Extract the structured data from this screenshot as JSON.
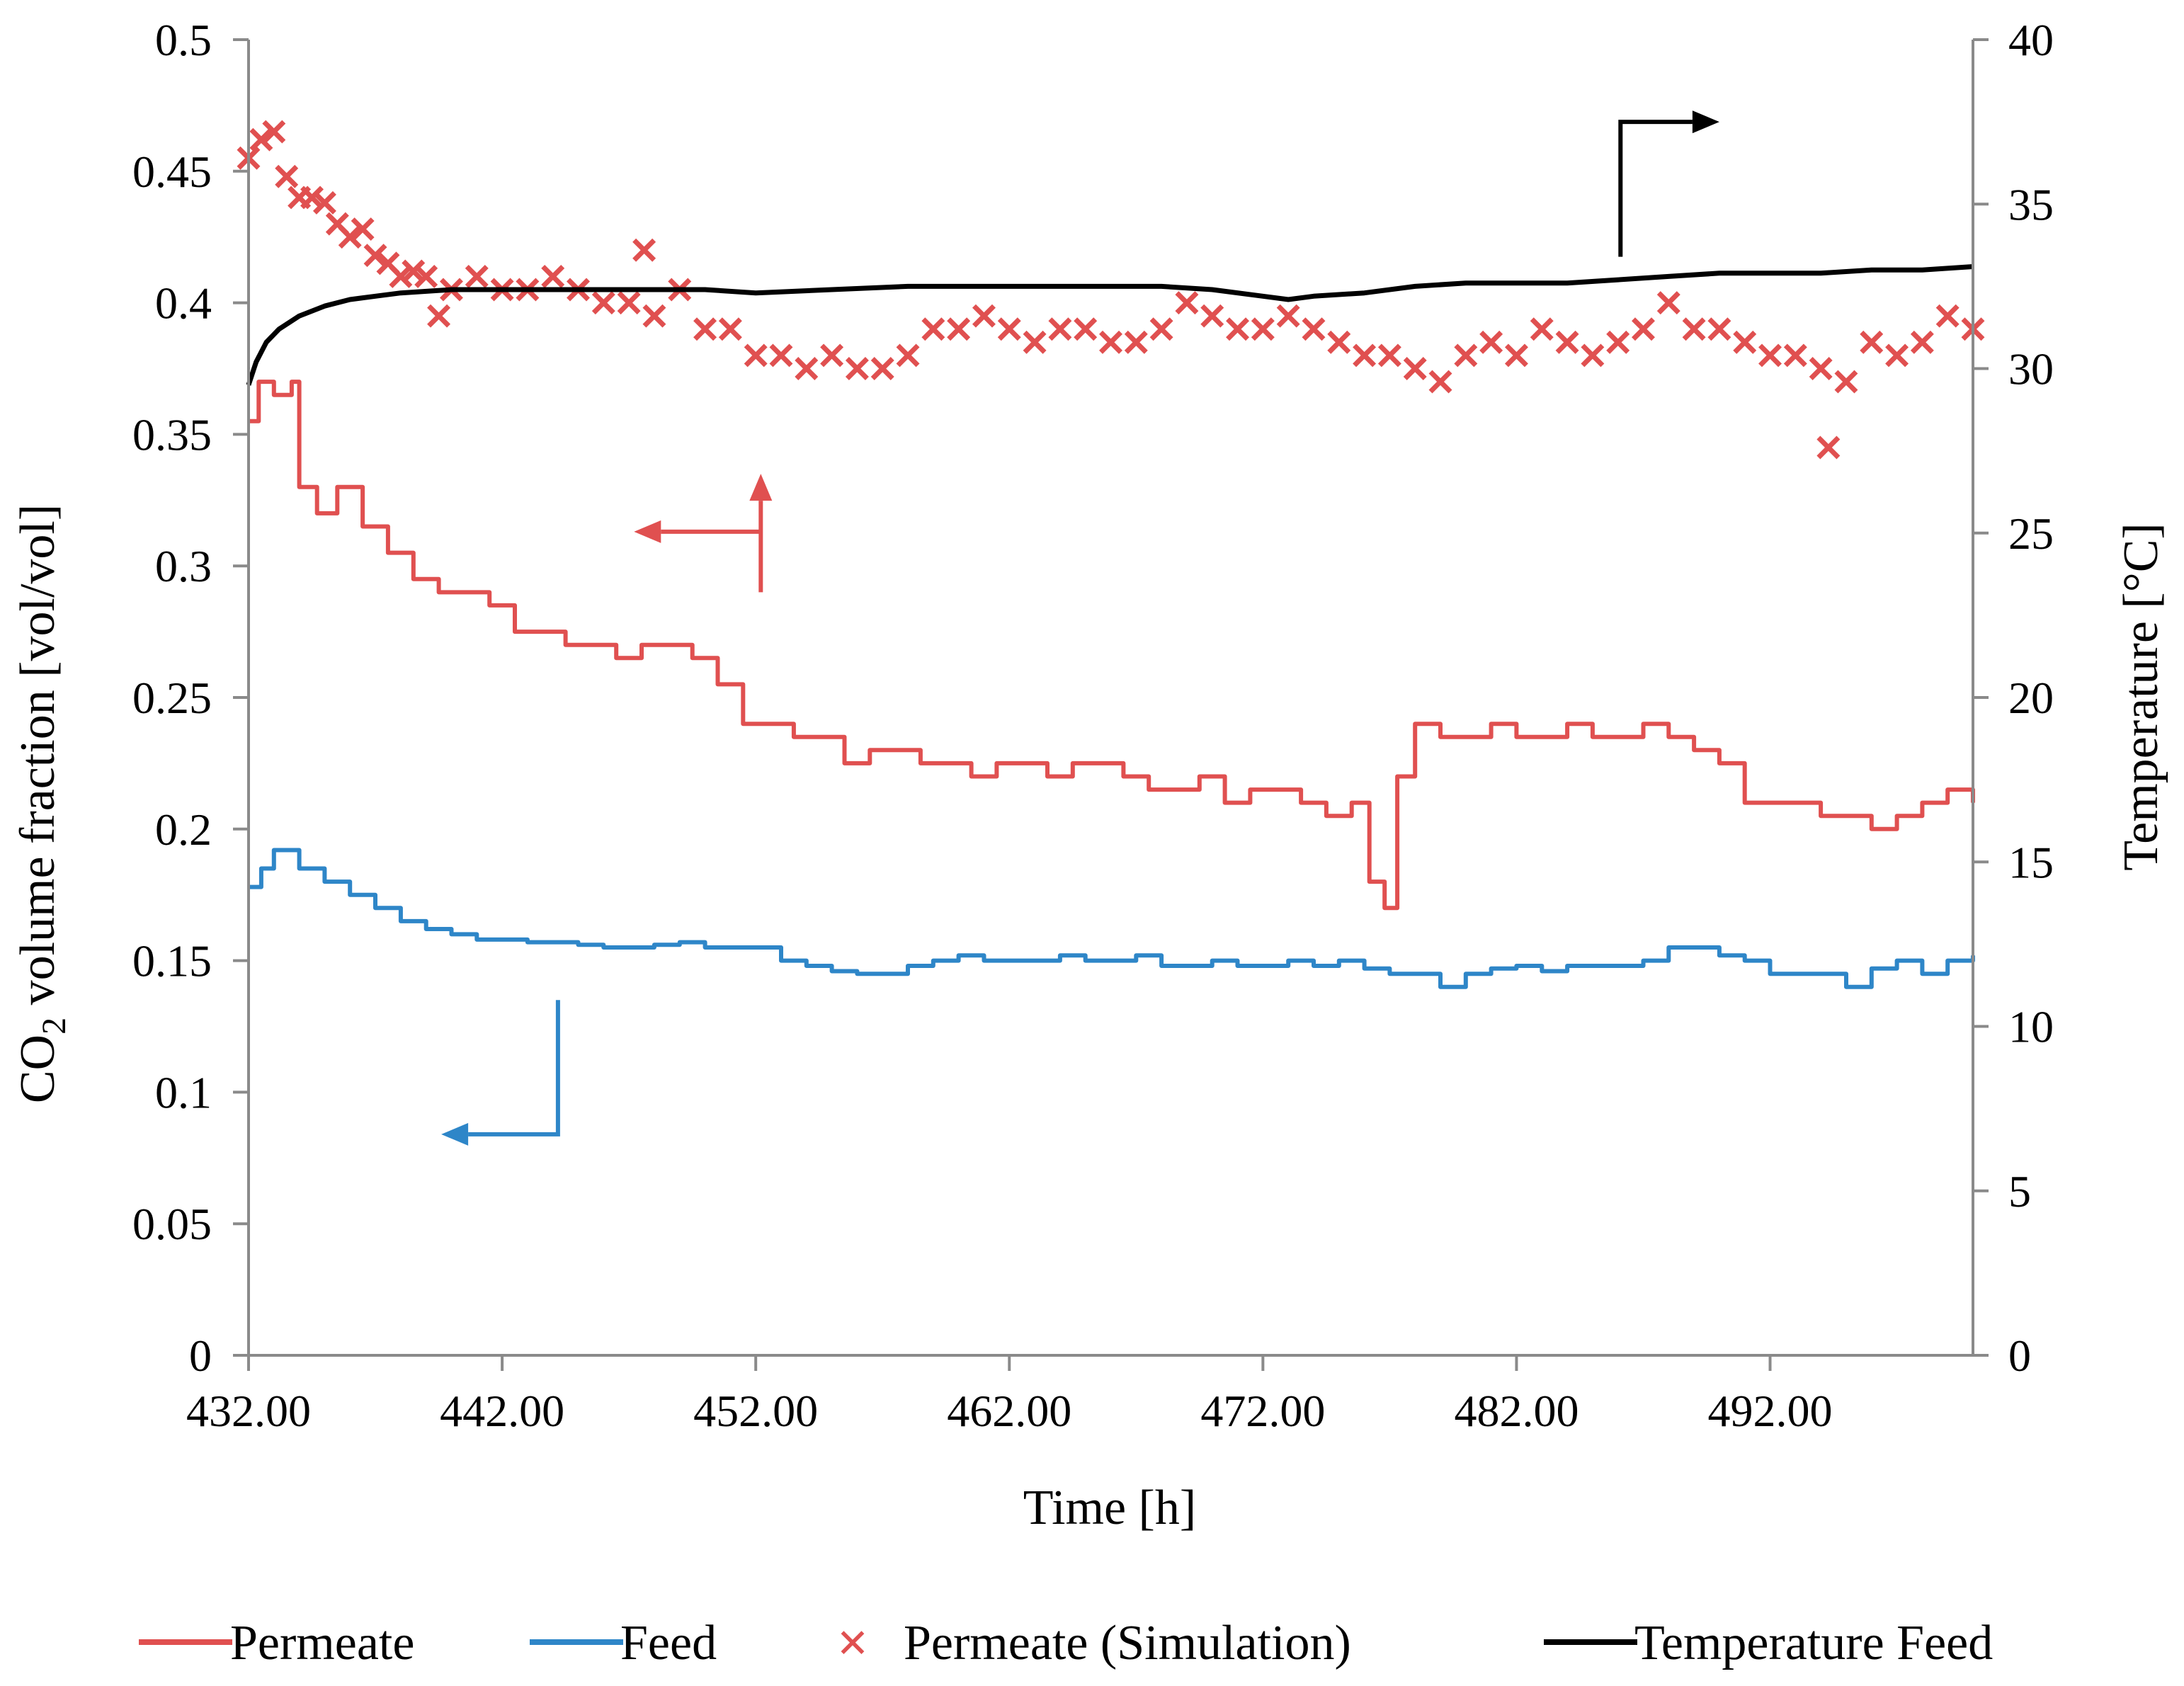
{
  "chart_data": {
    "type": "line",
    "x_axis": {
      "label": "Time [h]",
      "min": 432,
      "max": 500,
      "ticks": [
        {
          "value": 432,
          "label": "432.00"
        },
        {
          "value": 442,
          "label": "442.00"
        },
        {
          "value": 452,
          "label": "452.00"
        },
        {
          "value": 462,
          "label": "462.00"
        },
        {
          "value": 472,
          "label": "472.00"
        },
        {
          "value": 482,
          "label": "482.00"
        },
        {
          "value": 492,
          "label": "492.00"
        }
      ]
    },
    "y_axis_left": {
      "label_main": "CO",
      "label_sub": "2",
      "label_rest": " volume fraction  [vol/vol]",
      "min": 0,
      "max": 0.5,
      "ticks": [
        {
          "value": 0,
          "label": "0"
        },
        {
          "value": 0.05,
          "label": "0.05"
        },
        {
          "value": 0.1,
          "label": "0.1"
        },
        {
          "value": 0.15,
          "label": "0.15"
        },
        {
          "value": 0.2,
          "label": "0.2"
        },
        {
          "value": 0.25,
          "label": "0.25"
        },
        {
          "value": 0.3,
          "label": "0.3"
        },
        {
          "value": 0.35,
          "label": "0.35"
        },
        {
          "value": 0.4,
          "label": "0.4"
        },
        {
          "value": 0.45,
          "label": "0.45"
        },
        {
          "value": 0.5,
          "label": "0.5"
        }
      ]
    },
    "y_axis_right": {
      "label": "Temperature  [°C]",
      "min": 0,
      "max": 40,
      "ticks": [
        {
          "value": 0,
          "label": "0"
        },
        {
          "value": 5,
          "label": "5"
        },
        {
          "value": 10,
          "label": "10"
        },
        {
          "value": 15,
          "label": "15"
        },
        {
          "value": 20,
          "label": "20"
        },
        {
          "value": 25,
          "label": "25"
        },
        {
          "value": 30,
          "label": "30"
        },
        {
          "value": 35,
          "label": "35"
        },
        {
          "value": 40,
          "label": "40"
        }
      ]
    },
    "legend_position": "bottom",
    "grid": false,
    "series": [
      {
        "name": "Permeate",
        "kind": "line",
        "axis": "left",
        "color": "#e05050",
        "x": [
          432,
          432.4,
          433,
          433.7,
          434,
          434.7,
          435.5,
          436.5,
          437.5,
          438.5,
          439.5,
          440.5,
          441.5,
          442.5,
          443.5,
          444.5,
          445.5,
          446.5,
          447.5,
          448.5,
          449.5,
          450.5,
          451.5,
          452.5,
          453.5,
          454.5,
          455.5,
          456.5,
          457.5,
          458.5,
          459.5,
          460.5,
          461.5,
          462.5,
          463.5,
          464.5,
          465.5,
          466.5,
          467.5,
          468.5,
          469.5,
          470.5,
          471.5,
          472.5,
          473.5,
          474.5,
          475.5,
          476.2,
          476.8,
          477.3,
          478.0,
          479.0,
          480.0,
          481.0,
          482.0,
          483.0,
          484.0,
          485.0,
          486.0,
          487.0,
          488.0,
          489.0,
          490.0,
          491.0,
          492.0,
          493.0,
          494.0,
          495.0,
          496.0,
          497.0,
          498.0,
          499.0,
          500.0
        ],
        "values": [
          0.355,
          0.37,
          0.365,
          0.37,
          0.33,
          0.32,
          0.33,
          0.315,
          0.305,
          0.295,
          0.29,
          0.29,
          0.285,
          0.275,
          0.275,
          0.27,
          0.27,
          0.265,
          0.27,
          0.27,
          0.265,
          0.255,
          0.24,
          0.24,
          0.235,
          0.235,
          0.225,
          0.23,
          0.23,
          0.225,
          0.225,
          0.22,
          0.225,
          0.225,
          0.22,
          0.225,
          0.225,
          0.22,
          0.215,
          0.215,
          0.22,
          0.21,
          0.215,
          0.215,
          0.21,
          0.205,
          0.21,
          0.18,
          0.17,
          0.22,
          0.24,
          0.235,
          0.235,
          0.24,
          0.235,
          0.235,
          0.24,
          0.235,
          0.235,
          0.24,
          0.235,
          0.23,
          0.225,
          0.21,
          0.21,
          0.21,
          0.205,
          0.205,
          0.2,
          0.205,
          0.21,
          0.215,
          0.21
        ]
      },
      {
        "name": "Feed",
        "kind": "line",
        "axis": "left",
        "color": "#2e86c8",
        "x": [
          432,
          432.5,
          433,
          434,
          435,
          436,
          437,
          438,
          439,
          440,
          441,
          442,
          443,
          444,
          445,
          446,
          447,
          448,
          449,
          450,
          451,
          452,
          453,
          454,
          455,
          456,
          457,
          458,
          459,
          460,
          461,
          462,
          463,
          464,
          465,
          466,
          467,
          468,
          469,
          470,
          471,
          472,
          473,
          474,
          475,
          476,
          477,
          478,
          479,
          480,
          481,
          482,
          483,
          484,
          485,
          486,
          487,
          488,
          489,
          490,
          491,
          492,
          493,
          494,
          495,
          496,
          497,
          498,
          499,
          500
        ],
        "values": [
          0.178,
          0.185,
          0.192,
          0.185,
          0.18,
          0.175,
          0.17,
          0.165,
          0.162,
          0.16,
          0.158,
          0.158,
          0.157,
          0.157,
          0.156,
          0.155,
          0.155,
          0.156,
          0.157,
          0.155,
          0.155,
          0.155,
          0.15,
          0.148,
          0.146,
          0.145,
          0.145,
          0.148,
          0.15,
          0.152,
          0.15,
          0.15,
          0.15,
          0.152,
          0.15,
          0.15,
          0.152,
          0.148,
          0.148,
          0.15,
          0.148,
          0.148,
          0.15,
          0.148,
          0.15,
          0.147,
          0.145,
          0.145,
          0.14,
          0.145,
          0.147,
          0.148,
          0.146,
          0.148,
          0.148,
          0.148,
          0.15,
          0.155,
          0.155,
          0.152,
          0.15,
          0.145,
          0.145,
          0.145,
          0.14,
          0.147,
          0.15,
          0.145,
          0.15,
          0.152
        ]
      },
      {
        "name": "Permeate (Simulation)",
        "kind": "scatter",
        "axis": "left",
        "color": "#e05050",
        "marker": "x",
        "x": [
          432,
          432.5,
          433,
          433.5,
          434,
          434.5,
          435,
          435.5,
          436,
          436.5,
          437,
          437.5,
          438,
          438.5,
          439,
          439.5,
          440,
          441,
          442,
          443,
          444,
          445,
          446,
          447,
          447.6,
          448,
          449,
          450,
          451,
          452,
          453,
          454,
          455,
          456,
          457,
          458,
          459,
          460,
          461,
          462,
          463,
          464,
          465,
          466,
          467,
          468,
          469,
          470,
          471,
          472,
          473,
          474,
          475,
          476,
          477,
          478,
          479,
          480,
          481,
          482,
          483,
          484,
          485,
          486,
          487,
          488,
          489,
          490,
          491,
          492,
          493,
          494,
          494.3,
          495,
          496,
          497,
          498,
          499,
          500
        ],
        "values": [
          0.455,
          0.462,
          0.465,
          0.448,
          0.44,
          0.44,
          0.438,
          0.43,
          0.425,
          0.428,
          0.418,
          0.415,
          0.41,
          0.412,
          0.41,
          0.395,
          0.405,
          0.41,
          0.405,
          0.405,
          0.41,
          0.405,
          0.4,
          0.4,
          0.42,
          0.395,
          0.405,
          0.39,
          0.39,
          0.38,
          0.38,
          0.375,
          0.38,
          0.375,
          0.375,
          0.38,
          0.39,
          0.39,
          0.395,
          0.39,
          0.385,
          0.39,
          0.39,
          0.385,
          0.385,
          0.39,
          0.4,
          0.395,
          0.39,
          0.39,
          0.395,
          0.39,
          0.385,
          0.38,
          0.38,
          0.375,
          0.37,
          0.38,
          0.385,
          0.38,
          0.39,
          0.385,
          0.38,
          0.385,
          0.39,
          0.4,
          0.39,
          0.39,
          0.385,
          0.38,
          0.38,
          0.375,
          0.345,
          0.37,
          0.385,
          0.38,
          0.385,
          0.395,
          0.39
        ]
      },
      {
        "name": "Temperature Feed",
        "kind": "line",
        "axis": "right",
        "color": "#000000",
        "x": [
          432,
          432.3,
          432.7,
          433.2,
          434,
          435,
          436,
          437,
          438,
          440,
          442,
          444,
          446,
          448,
          450,
          452,
          455,
          458,
          460,
          462,
          465,
          468,
          470,
          472,
          473,
          474,
          476,
          478,
          480,
          482,
          484,
          486,
          488,
          490,
          492,
          494,
          496,
          498,
          500
        ],
        "values": [
          29.5,
          30.2,
          30.8,
          31.2,
          31.6,
          31.9,
          32.1,
          32.2,
          32.3,
          32.4,
          32.4,
          32.4,
          32.4,
          32.4,
          32.4,
          32.3,
          32.4,
          32.5,
          32.5,
          32.5,
          32.5,
          32.5,
          32.4,
          32.2,
          32.1,
          32.2,
          32.3,
          32.5,
          32.6,
          32.6,
          32.6,
          32.7,
          32.8,
          32.9,
          32.9,
          32.9,
          33.0,
          33.0,
          33.1
        ]
      }
    ],
    "annotations": [
      {
        "kind": "arrow",
        "color": "#000000",
        "axis": "right",
        "points": [
          [
            486.1,
            33.4
          ],
          [
            486.1,
            37.5
          ],
          [
            490.0,
            37.5
          ]
        ]
      },
      {
        "kind": "arrow",
        "color": "#e05050",
        "axis": "left",
        "points": [
          [
            452.2,
            0.29
          ],
          [
            452.2,
            0.335
          ]
        ]
      },
      {
        "kind": "arrow",
        "color": "#e05050",
        "axis": "left",
        "points": [
          [
            452.2,
            0.313
          ],
          [
            447.2,
            0.313
          ]
        ]
      },
      {
        "kind": "arrow",
        "color": "#2e86c8",
        "axis": "left",
        "points": [
          [
            444.2,
            0.135
          ],
          [
            444.2,
            0.084
          ],
          [
            439.6,
            0.084
          ]
        ]
      }
    ]
  }
}
